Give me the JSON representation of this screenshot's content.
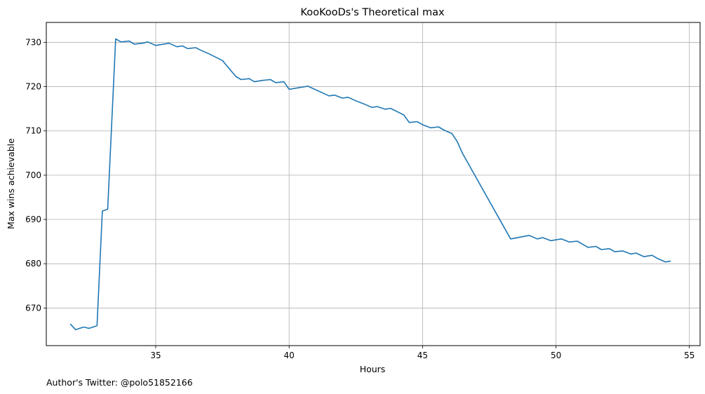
{
  "chart_data": {
    "type": "line",
    "title": "KooKooDs's Theoretical max",
    "xlabel": "Hours",
    "ylabel": "Max wins achievable",
    "xlim": [
      30.9,
      55.4
    ],
    "ylim": [
      661.5,
      734.5
    ],
    "xticks": [
      35,
      40,
      45,
      50,
      55
    ],
    "yticks": [
      670,
      680,
      690,
      700,
      710,
      720,
      730
    ],
    "grid": true,
    "series": [
      {
        "color": "#1f77b4",
        "x": [
          31.8,
          32.0,
          32.3,
          32.5,
          32.8,
          33.0,
          33.2,
          33.5,
          33.7,
          34.0,
          34.2,
          34.5,
          34.7,
          35.0,
          35.3,
          35.5,
          35.8,
          36.0,
          36.2,
          36.5,
          36.7,
          37.0,
          37.5,
          38.0,
          38.2,
          38.5,
          38.7,
          39.0,
          39.3,
          39.5,
          39.8,
          40.0,
          40.7,
          41.5,
          41.7,
          42.0,
          42.2,
          42.5,
          42.8,
          43.1,
          43.3,
          43.6,
          43.8,
          44.1,
          44.3,
          44.5,
          44.8,
          45.0,
          45.3,
          45.6,
          45.8,
          46.1,
          46.3,
          46.5,
          48.3,
          49.0,
          49.3,
          49.5,
          49.8,
          50.2,
          50.5,
          50.8,
          51.2,
          51.5,
          51.7,
          52.0,
          52.2,
          52.5,
          52.8,
          53.0,
          53.3,
          53.6,
          53.8,
          54.1,
          54.3
        ],
        "y": [
          666.4,
          665.1,
          665.7,
          665.4,
          666.0,
          691.9,
          692.3,
          730.8,
          730.1,
          730.3,
          729.6,
          729.8,
          730.1,
          729.3,
          729.6,
          729.8,
          729.0,
          729.2,
          728.6,
          728.8,
          728.2,
          727.4,
          725.9,
          722.3,
          721.6,
          721.8,
          721.1,
          721.4,
          721.6,
          720.9,
          721.1,
          719.4,
          720.1,
          717.9,
          718.1,
          717.4,
          717.6,
          716.8,
          716.1,
          715.3,
          715.5,
          714.9,
          715.1,
          714.2,
          713.6,
          711.9,
          712.1,
          711.4,
          710.7,
          710.9,
          710.2,
          709.4,
          707.6,
          704.9,
          685.6,
          686.4,
          685.6,
          685.9,
          685.2,
          685.6,
          684.9,
          685.1,
          683.7,
          683.9,
          683.2,
          683.4,
          682.7,
          682.9,
          682.2,
          682.4,
          681.6,
          681.9,
          681.2,
          680.4,
          680.6
        ]
      }
    ]
  },
  "footer": {
    "text": "Author's Twitter: @polo51852166"
  }
}
